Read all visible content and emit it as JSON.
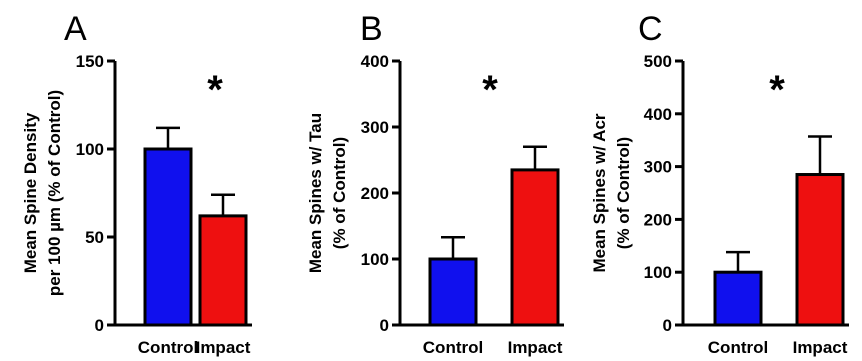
{
  "chart_data": [
    {
      "type": "bar",
      "panel_label": "A",
      "ylabel_lines": [
        "Mean  Spine  Density",
        "per 100 µm (% of Control)"
      ],
      "categories": [
        "Control",
        "Impact"
      ],
      "values": [
        100,
        62
      ],
      "errors": [
        12,
        12
      ],
      "colors": [
        "#1010ee",
        "#ee1010"
      ],
      "ylim": [
        0,
        150
      ],
      "yticks": [
        0,
        50,
        100,
        150
      ],
      "significance": "*",
      "grid": false
    },
    {
      "type": "bar",
      "panel_label": "B",
      "ylabel_lines": [
        "Mean Spines w/ Tau",
        "(% of Control)"
      ],
      "categories": [
        "Control",
        "Impact"
      ],
      "values": [
        100,
        235
      ],
      "errors": [
        33,
        35
      ],
      "colors": [
        "#1010ee",
        "#ee1010"
      ],
      "ylim": [
        0,
        400
      ],
      "yticks": [
        0,
        100,
        200,
        300,
        400
      ],
      "significance": "*",
      "grid": false
    },
    {
      "type": "bar",
      "panel_label": "C",
      "ylabel_lines": [
        "Mean Spines w/ Acr",
        "(% of Control)"
      ],
      "categories": [
        "Control",
        "Impact"
      ],
      "values": [
        100,
        285
      ],
      "errors": [
        38,
        72
      ],
      "colors": [
        "#1010ee",
        "#ee1010"
      ],
      "ylim": [
        0,
        500
      ],
      "yticks": [
        0,
        100,
        200,
        300,
        400,
        500
      ],
      "significance": "*",
      "grid": false
    }
  ]
}
